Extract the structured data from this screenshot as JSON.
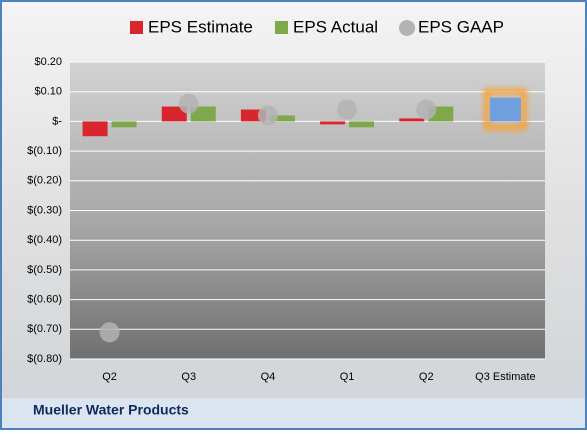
{
  "chart_data": {
    "type": "bar",
    "title": "Mueller Water Products",
    "categories": [
      "Q2",
      "Q3",
      "Q4",
      "Q1",
      "Q2",
      "Q3 Estimate"
    ],
    "series": [
      {
        "name": "EPS Estimate",
        "color": "#d9262e",
        "values": [
          -0.05,
          0.05,
          0.04,
          -0.01,
          0.01,
          0.08
        ]
      },
      {
        "name": "EPS Actual",
        "color": "#7fa84a",
        "values": [
          -0.02,
          0.05,
          0.02,
          -0.02,
          0.05,
          null
        ]
      },
      {
        "name": "EPS GAAP",
        "color": "#b3b3b3",
        "values": [
          -0.71,
          0.06,
          0.02,
          0.04,
          0.04,
          null
        ]
      }
    ],
    "highlight_color": "#6f9fdc",
    "ylim": [
      -0.8,
      0.2
    ],
    "yticks": [
      {
        "value": 0.2,
        "label": "$0.20"
      },
      {
        "value": 0.1,
        "label": "$0.10"
      },
      {
        "value": 0,
        "label": "$-"
      },
      {
        "value": -0.1,
        "label": "$(0.10)"
      },
      {
        "value": -0.2,
        "label": "$(0.20)"
      },
      {
        "value": -0.3,
        "label": "$(0.30)"
      },
      {
        "value": -0.4,
        "label": "$(0.40)"
      },
      {
        "value": -0.5,
        "label": "$(0.50)"
      },
      {
        "value": -0.6,
        "label": "$(0.60)"
      },
      {
        "value": -0.7,
        "label": "$(0.70)"
      },
      {
        "value": -0.8,
        "label": "$(0.80)"
      }
    ],
    "grid": true
  }
}
